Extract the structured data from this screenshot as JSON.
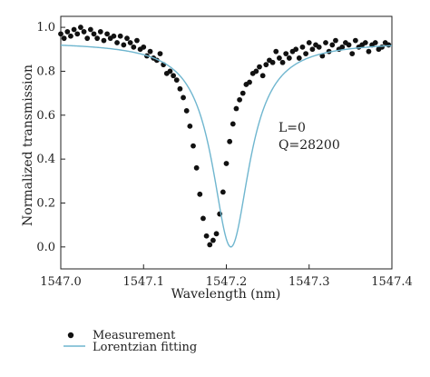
{
  "chart_data": {
    "type": "scatter",
    "xlabel": "Wavelength (nm)",
    "ylabel": "Normalized transmission",
    "xlim": [
      1547.0,
      1547.4
    ],
    "ylim": [
      -0.1,
      1.05
    ],
    "x_ticks": [
      1547.0,
      1547.1,
      1547.2,
      1547.3,
      1547.4
    ],
    "x_tick_labels": [
      "1547.0",
      "1547.1",
      "1547.2",
      "1547.3",
      "1547.4"
    ],
    "y_ticks": [
      0.0,
      0.2,
      0.4,
      0.6,
      0.8,
      1.0
    ],
    "y_tick_labels": [
      "0.0",
      "0.2",
      "0.4",
      "0.6",
      "0.8",
      "1.0"
    ],
    "grid": false,
    "annotations": [
      "L=0",
      "Q=28200"
    ],
    "legend": {
      "placement": "bottom-left",
      "entries": [
        "Measurement",
        "Lorentzian fitting"
      ]
    },
    "colors": {
      "measurement": "#111111",
      "fit": "#6fb6cf"
    },
    "series": [
      {
        "name": "Measurement",
        "kind": "scatter",
        "x": [
          1547.0,
          1547.004,
          1547.008,
          1547.012,
          1547.016,
          1547.02,
          1547.024,
          1547.028,
          1547.032,
          1547.036,
          1547.04,
          1547.044,
          1547.048,
          1547.052,
          1547.056,
          1547.06,
          1547.064,
          1547.068,
          1547.072,
          1547.076,
          1547.08,
          1547.084,
          1547.088,
          1547.092,
          1547.096,
          1547.1,
          1547.104,
          1547.108,
          1547.112,
          1547.116,
          1547.12,
          1547.124,
          1547.128,
          1547.132,
          1547.136,
          1547.14,
          1547.144,
          1547.148,
          1547.152,
          1547.156,
          1547.16,
          1547.164,
          1547.168,
          1547.172,
          1547.176,
          1547.18,
          1547.184,
          1547.188,
          1547.192,
          1547.196,
          1547.2,
          1547.204,
          1547.208,
          1547.212,
          1547.216,
          1547.22,
          1547.224,
          1547.228,
          1547.232,
          1547.236,
          1547.24,
          1547.244,
          1547.248,
          1547.252,
          1547.256,
          1547.26,
          1547.264,
          1547.268,
          1547.272,
          1547.276,
          1547.28,
          1547.284,
          1547.288,
          1547.292,
          1547.296,
          1547.3,
          1547.304,
          1547.308,
          1547.312,
          1547.316,
          1547.32,
          1547.324,
          1547.328,
          1547.332,
          1547.336,
          1547.34,
          1547.344,
          1547.348,
          1547.352,
          1547.356,
          1547.36,
          1547.364,
          1547.368,
          1547.372,
          1547.376,
          1547.38,
          1547.384,
          1547.388,
          1547.392,
          1547.396
        ],
        "y": [
          0.97,
          0.95,
          0.98,
          0.96,
          0.99,
          0.97,
          1.0,
          0.98,
          0.95,
          0.99,
          0.97,
          0.95,
          0.98,
          0.94,
          0.97,
          0.95,
          0.96,
          0.93,
          0.96,
          0.92,
          0.95,
          0.93,
          0.91,
          0.94,
          0.9,
          0.91,
          0.87,
          0.89,
          0.86,
          0.85,
          0.88,
          0.83,
          0.79,
          0.8,
          0.78,
          0.76,
          0.72,
          0.68,
          0.62,
          0.55,
          0.46,
          0.36,
          0.24,
          0.13,
          0.05,
          0.01,
          0.03,
          0.06,
          0.15,
          0.25,
          0.38,
          0.48,
          0.56,
          0.63,
          0.67,
          0.7,
          0.74,
          0.75,
          0.79,
          0.8,
          0.82,
          0.78,
          0.83,
          0.85,
          0.84,
          0.89,
          0.86,
          0.84,
          0.88,
          0.86,
          0.89,
          0.9,
          0.86,
          0.91,
          0.88,
          0.93,
          0.9,
          0.92,
          0.91,
          0.87,
          0.93,
          0.89,
          0.92,
          0.94,
          0.9,
          0.91,
          0.93,
          0.92,
          0.88,
          0.94,
          0.91,
          0.92,
          0.93,
          0.89,
          0.92,
          0.93,
          0.9,
          0.91,
          0.93,
          0.92
        ]
      },
      {
        "name": "Lorentzian fitting",
        "kind": "line",
        "model": "lorentzian",
        "baseline": 0.935,
        "depth": 0.935,
        "center": 1547.2055,
        "half_width": 0.0275
      }
    ]
  }
}
